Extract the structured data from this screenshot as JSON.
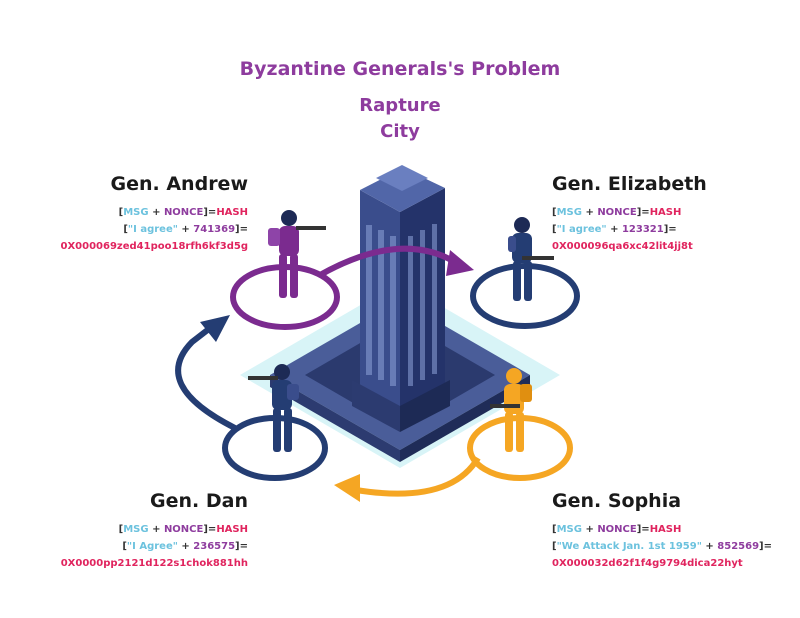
{
  "title": "Byzantine Generals's Problem",
  "city": {
    "line1": "Rapture",
    "line2": "City"
  },
  "formula": {
    "open": "[",
    "msg": "MSG",
    "plus": "+",
    "nonce": "NONCE",
    "close_eq": "]=",
    "hash": "HASH"
  },
  "generals": [
    {
      "name": "Gen. Andrew",
      "message": "\"I agree\"",
      "nonce": "741369",
      "hash": "0X000069zed41poo18rfh6kf3d5g",
      "color": "#7b2b8f"
    },
    {
      "name": "Gen. Elizabeth",
      "message": "\"I agree\"",
      "nonce": "123321",
      "hash": "0X000096qa6xc42lit4jj8t",
      "color": "#243d73"
    },
    {
      "name": "Gen. Dan",
      "message": "\"I Agree\"",
      "nonce": "236575",
      "hash": "0X0000pp2121d122s1chok881hh",
      "color": "#243d73"
    },
    {
      "name": "Gen. Sophia",
      "message": "\"We Attack Jan. 1st 1959\"",
      "nonce": "852569",
      "hash": "0X000032d62f1f4g9794dica22hyt",
      "color": "#f5a623"
    }
  ],
  "colors": {
    "purple": "#7b2b8f",
    "navy": "#243d73",
    "orange": "#f5a623",
    "title": "#8e3c9e",
    "hash_pink": "#e0245e",
    "msg_cyan": "#6cc2de"
  }
}
